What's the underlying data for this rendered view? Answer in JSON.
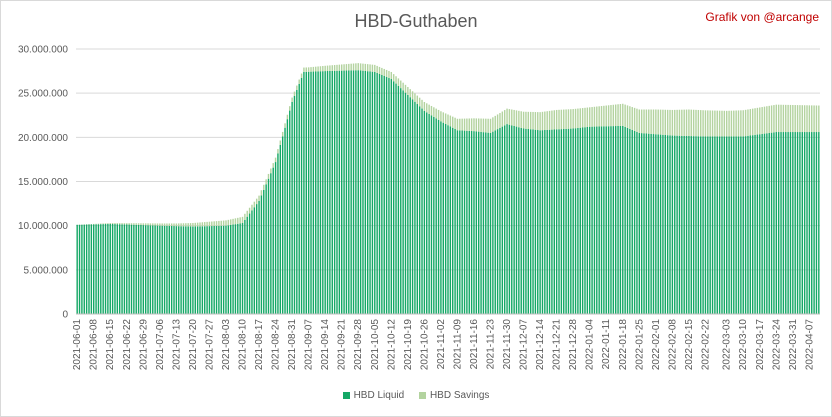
{
  "chart_data": {
    "type": "bar",
    "stacked": true,
    "title": "HBD-Guthaben",
    "annotation": "Grafik von @arcange",
    "xlabel": "",
    "ylabel": "",
    "ylim": [
      0,
      30000000
    ],
    "yticks": [
      "0",
      "5.000.000",
      "10.000.000",
      "15.000.000",
      "20.000.000",
      "25.000.000",
      "30.000.000"
    ],
    "xticks": [
      "2021-06-01",
      "2021-06-08",
      "2021-06-15",
      "2021-06-22",
      "2021-06-29",
      "2021-07-06",
      "2021-07-13",
      "2021-07-20",
      "2021-07-27",
      "2021-08-03",
      "2021-08-10",
      "2021-08-17",
      "2021-08-24",
      "2021-08-31",
      "2021-09-07",
      "2021-09-14",
      "2021-09-21",
      "2021-09-28",
      "2021-10-05",
      "2021-10-12",
      "2021-10-19",
      "2021-10-26",
      "2021-11-02",
      "2021-11-09",
      "2021-11-16",
      "2021-11-23",
      "2021-11-30",
      "2021-12-07",
      "2021-12-14",
      "2021-12-21",
      "2021-12-28",
      "2022-01-04",
      "2022-01-11",
      "2022-01-18",
      "2022-01-25",
      "2022-02-01",
      "2022-02-08",
      "2022-02-15",
      "2022-02-22",
      "2022-03-03",
      "2022-03-10",
      "2022-03-17",
      "2022-03-24",
      "2022-03-31",
      "2022-04-07"
    ],
    "x_first": "2021-06-01",
    "x_last": "2022-04-11",
    "grid": true,
    "legend_position": "bottom",
    "series": [
      {
        "name": "HBD Liquid",
        "color": "#14a866",
        "keypoints": [
          [
            "2021-06-01",
            10100000
          ],
          [
            "2021-06-15",
            10200000
          ],
          [
            "2021-07-06",
            10000000
          ],
          [
            "2021-07-20",
            9900000
          ],
          [
            "2021-08-03",
            10000000
          ],
          [
            "2021-08-10",
            10300000
          ],
          [
            "2021-08-17",
            12800000
          ],
          [
            "2021-08-24",
            17200000
          ],
          [
            "2021-08-31",
            24000000
          ],
          [
            "2021-09-05",
            27400000
          ],
          [
            "2021-09-14",
            27500000
          ],
          [
            "2021-09-28",
            27600000
          ],
          [
            "2021-10-05",
            27400000
          ],
          [
            "2021-10-12",
            26600000
          ],
          [
            "2021-10-19",
            24800000
          ],
          [
            "2021-10-26",
            23000000
          ],
          [
            "2021-11-02",
            21800000
          ],
          [
            "2021-11-09",
            20800000
          ],
          [
            "2021-11-16",
            20700000
          ],
          [
            "2021-11-23",
            20500000
          ],
          [
            "2021-11-30",
            21500000
          ],
          [
            "2021-12-07",
            21000000
          ],
          [
            "2021-12-14",
            20800000
          ],
          [
            "2021-12-21",
            20900000
          ],
          [
            "2021-12-28",
            21000000
          ],
          [
            "2022-01-04",
            21200000
          ],
          [
            "2022-01-18",
            21300000
          ],
          [
            "2022-01-25",
            20500000
          ],
          [
            "2022-02-08",
            20200000
          ],
          [
            "2022-02-22",
            20100000
          ],
          [
            "2022-03-10",
            20100000
          ],
          [
            "2022-03-24",
            20600000
          ],
          [
            "2022-04-11",
            20600000
          ]
        ]
      },
      {
        "name": "HBD Savings",
        "color": "#b3d39f",
        "keypoints": [
          [
            "2021-06-01",
            0
          ],
          [
            "2021-07-13",
            300000
          ],
          [
            "2021-08-10",
            700000
          ],
          [
            "2021-08-24",
            500000
          ],
          [
            "2021-09-07",
            500000
          ],
          [
            "2021-09-28",
            800000
          ],
          [
            "2021-10-12",
            800000
          ],
          [
            "2021-10-26",
            1000000
          ],
          [
            "2021-11-09",
            1300000
          ],
          [
            "2021-11-23",
            1600000
          ],
          [
            "2021-12-07",
            1900000
          ],
          [
            "2021-12-21",
            2200000
          ],
          [
            "2022-01-04",
            2200000
          ],
          [
            "2022-01-18",
            2500000
          ],
          [
            "2022-02-01",
            2800000
          ],
          [
            "2022-02-15",
            3000000
          ],
          [
            "2022-03-03",
            2900000
          ],
          [
            "2022-03-24",
            3100000
          ],
          [
            "2022-04-11",
            3000000
          ]
        ]
      }
    ]
  }
}
